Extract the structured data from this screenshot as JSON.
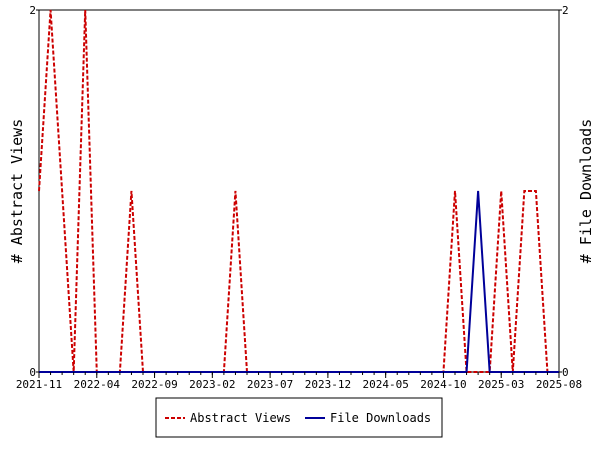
{
  "chart_data": {
    "type": "line",
    "x_tick_labels": [
      "2021-11",
      "2022-04",
      "2022-09",
      "2023-02",
      "2023-07",
      "2023-12",
      "2024-05",
      "2024-10",
      "2025-03",
      "2025-08"
    ],
    "x": [
      "2021-11",
      "2021-12",
      "2022-01",
      "2022-02",
      "2022-03",
      "2022-04",
      "2022-05",
      "2022-06",
      "2022-07",
      "2022-08",
      "2022-09",
      "2022-10",
      "2022-11",
      "2022-12",
      "2023-01",
      "2023-02",
      "2023-03",
      "2023-04",
      "2023-05",
      "2023-06",
      "2023-07",
      "2023-08",
      "2023-09",
      "2023-10",
      "2023-11",
      "2023-12",
      "2024-01",
      "2024-02",
      "2024-03",
      "2024-04",
      "2024-05",
      "2024-06",
      "2024-07",
      "2024-08",
      "2024-09",
      "2024-10",
      "2024-11",
      "2024-12",
      "2025-01",
      "2025-02",
      "2025-03",
      "2025-04",
      "2025-05",
      "2025-06",
      "2025-07",
      "2025-08"
    ],
    "series": [
      {
        "name": "Abstract Views",
        "axis": "left",
        "color": "#cc0000",
        "style": "dashed",
        "values": [
          1,
          2,
          1,
          0,
          2,
          0,
          0,
          0,
          1,
          0,
          0,
          0,
          0,
          0,
          0,
          0,
          0,
          1,
          0,
          0,
          0,
          0,
          0,
          0,
          0,
          0,
          0,
          0,
          0,
          0,
          0,
          0,
          0,
          0,
          0,
          0,
          1,
          0,
          0,
          0,
          1,
          0,
          1,
          1,
          0,
          0
        ]
      },
      {
        "name": "File Downloads",
        "axis": "right",
        "color": "#000099",
        "style": "solid",
        "values": [
          0,
          0,
          0,
          0,
          0,
          0,
          0,
          0,
          0,
          0,
          0,
          0,
          0,
          0,
          0,
          0,
          0,
          0,
          0,
          0,
          0,
          0,
          0,
          0,
          0,
          0,
          0,
          0,
          0,
          0,
          0,
          0,
          0,
          0,
          0,
          0,
          0,
          0,
          1,
          0,
          0,
          0,
          0,
          0,
          0,
          0
        ]
      }
    ],
    "ylabel_left": "# Abstract Views",
    "ylabel_right": "# File Downloads",
    "ylim_left": [
      0,
      2
    ],
    "ylim_right": [
      0,
      2
    ],
    "y_ticks_left": [
      "0",
      "2"
    ],
    "y_ticks_right": [
      "0",
      "2"
    ],
    "grid": false,
    "legend_position": "bottom-center"
  }
}
